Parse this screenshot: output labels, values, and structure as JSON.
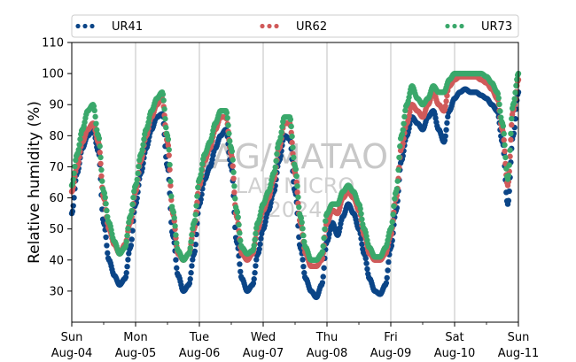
{
  "watermark": {
    "line1": "IAG/MATAO",
    "line2": "LAB MICRO",
    "line3": "2024"
  },
  "chart_data": {
    "type": "scatter",
    "title": "",
    "xlabel": "",
    "ylabel": "Relative humidity (%)",
    "xlim": [
      "2024-08-04T00:00",
      "2024-08-11T00:00"
    ],
    "ylim": [
      20,
      110
    ],
    "yticks": [
      30,
      40,
      50,
      60,
      70,
      80,
      90,
      100,
      110
    ],
    "xticks": [
      {
        "day": "Sun",
        "date": "Aug-04"
      },
      {
        "day": "Mon",
        "date": "Aug-05"
      },
      {
        "day": "Tue",
        "date": "Aug-06"
      },
      {
        "day": "Wed",
        "date": "Aug-07"
      },
      {
        "day": "Thu",
        "date": "Aug-08"
      },
      {
        "day": "Fri",
        "date": "Aug-09"
      },
      {
        "day": "Sat",
        "date": "Aug-10"
      },
      {
        "day": "Sun",
        "date": "Aug-11"
      }
    ],
    "grid": "vertical-major",
    "legend": "top",
    "series": [
      {
        "name": "UR41",
        "color": "#0b4587",
        "x": [
          "2024-08-04T00:00",
          "2024-08-04T02:00",
          "2024-08-04T04:00",
          "2024-08-04T06:00",
          "2024-08-04T08:00",
          "2024-08-04T10:00",
          "2024-08-04T12:00",
          "2024-08-04T14:00",
          "2024-08-04T16:00",
          "2024-08-04T18:00",
          "2024-08-04T20:00",
          "2024-08-04T22:00",
          "2024-08-05T00:00",
          "2024-08-05T02:00",
          "2024-08-05T04:00",
          "2024-08-05T06:00",
          "2024-08-05T08:00",
          "2024-08-05T10:00",
          "2024-08-05T12:00",
          "2024-08-05T14:00",
          "2024-08-05T16:00",
          "2024-08-05T18:00",
          "2024-08-05T20:00",
          "2024-08-05T22:00",
          "2024-08-06T00:00",
          "2024-08-06T02:00",
          "2024-08-06T04:00",
          "2024-08-06T06:00",
          "2024-08-06T08:00",
          "2024-08-06T10:00",
          "2024-08-06T12:00",
          "2024-08-06T14:00",
          "2024-08-06T16:00",
          "2024-08-06T18:00",
          "2024-08-06T20:00",
          "2024-08-06T22:00",
          "2024-08-07T00:00",
          "2024-08-07T02:00",
          "2024-08-07T04:00",
          "2024-08-07T06:00",
          "2024-08-07T08:00",
          "2024-08-07T10:00",
          "2024-08-07T12:00",
          "2024-08-07T14:00",
          "2024-08-07T16:00",
          "2024-08-07T18:00",
          "2024-08-07T20:00",
          "2024-08-07T22:00",
          "2024-08-08T00:00",
          "2024-08-08T02:00",
          "2024-08-08T04:00",
          "2024-08-08T06:00",
          "2024-08-08T08:00",
          "2024-08-08T10:00",
          "2024-08-08T12:00",
          "2024-08-08T14:00",
          "2024-08-08T16:00",
          "2024-08-08T18:00",
          "2024-08-08T20:00",
          "2024-08-08T22:00",
          "2024-08-09T00:00",
          "2024-08-09T02:00",
          "2024-08-09T04:00",
          "2024-08-09T06:00",
          "2024-08-09T08:00",
          "2024-08-09T10:00",
          "2024-08-09T12:00",
          "2024-08-09T14:00",
          "2024-08-09T16:00",
          "2024-08-09T18:00",
          "2024-08-09T20:00",
          "2024-08-09T22:00",
          "2024-08-10T00:00",
          "2024-08-10T02:00",
          "2024-08-10T04:00",
          "2024-08-10T06:00",
          "2024-08-10T08:00",
          "2024-08-10T10:00",
          "2024-08-10T12:00",
          "2024-08-10T14:00",
          "2024-08-10T16:00",
          "2024-08-10T18:00",
          "2024-08-10T20:00",
          "2024-08-10T22:00",
          "2024-08-11T00:00"
        ],
        "y": [
          55,
          68,
          76,
          80,
          82,
          75,
          52,
          40,
          35,
          32,
          34,
          44,
          58,
          68,
          76,
          82,
          86,
          87,
          70,
          48,
          35,
          30,
          32,
          42,
          58,
          66,
          70,
          76,
          80,
          82,
          70,
          46,
          34,
          30,
          32,
          42,
          50,
          56,
          62,
          72,
          80,
          79,
          62,
          44,
          34,
          30,
          28,
          32,
          46,
          52,
          48,
          54,
          58,
          55,
          50,
          42,
          34,
          30,
          29,
          32,
          44,
          56,
          72,
          80,
          86,
          84,
          82,
          86,
          88,
          82,
          78,
          88,
          92,
          94,
          95,
          94,
          94,
          93,
          92,
          90,
          88,
          78,
          58,
          80,
          94
        ],
        "size": 3.2
      },
      {
        "name": "UR62",
        "color": "#d05a5a",
        "x": [
          "2024-08-04T00:00",
          "2024-08-04T02:00",
          "2024-08-04T04:00",
          "2024-08-04T06:00",
          "2024-08-04T08:00",
          "2024-08-04T10:00",
          "2024-08-04T12:00",
          "2024-08-04T14:00",
          "2024-08-04T16:00",
          "2024-08-04T18:00",
          "2024-08-04T20:00",
          "2024-08-04T22:00",
          "2024-08-05T00:00",
          "2024-08-05T02:00",
          "2024-08-05T04:00",
          "2024-08-05T06:00",
          "2024-08-05T08:00",
          "2024-08-05T10:00",
          "2024-08-05T12:00",
          "2024-08-05T14:00",
          "2024-08-05T16:00",
          "2024-08-05T18:00",
          "2024-08-05T20:00",
          "2024-08-05T22:00",
          "2024-08-06T00:00",
          "2024-08-06T02:00",
          "2024-08-06T04:00",
          "2024-08-06T06:00",
          "2024-08-06T08:00",
          "2024-08-06T10:00",
          "2024-08-06T12:00",
          "2024-08-06T14:00",
          "2024-08-06T16:00",
          "2024-08-06T18:00",
          "2024-08-06T20:00",
          "2024-08-06T22:00",
          "2024-08-07T00:00",
          "2024-08-07T02:00",
          "2024-08-07T04:00",
          "2024-08-07T06:00",
          "2024-08-07T08:00",
          "2024-08-07T10:00",
          "2024-08-07T12:00",
          "2024-08-07T14:00",
          "2024-08-07T16:00",
          "2024-08-07T18:00",
          "2024-08-07T20:00",
          "2024-08-07T22:00",
          "2024-08-08T00:00",
          "2024-08-08T02:00",
          "2024-08-08T04:00",
          "2024-08-08T06:00",
          "2024-08-08T08:00",
          "2024-08-08T10:00",
          "2024-08-08T12:00",
          "2024-08-08T14:00",
          "2024-08-08T16:00",
          "2024-08-08T18:00",
          "2024-08-08T20:00",
          "2024-08-08T22:00",
          "2024-08-09T00:00",
          "2024-08-09T02:00",
          "2024-08-09T04:00",
          "2024-08-09T06:00",
          "2024-08-09T08:00",
          "2024-08-09T10:00",
          "2024-08-09T12:00",
          "2024-08-09T14:00",
          "2024-08-09T16:00",
          "2024-08-09T18:00",
          "2024-08-09T20:00",
          "2024-08-09T22:00",
          "2024-08-10T00:00",
          "2024-08-10T02:00",
          "2024-08-10T04:00",
          "2024-08-10T06:00",
          "2024-08-10T08:00",
          "2024-08-10T10:00",
          "2024-08-10T12:00",
          "2024-08-10T14:00",
          "2024-08-10T16:00",
          "2024-08-10T18:00",
          "2024-08-10T20:00",
          "2024-08-10T22:00",
          "2024-08-11T00:00"
        ],
        "y": [
          62,
          70,
          78,
          82,
          84,
          78,
          60,
          50,
          45,
          42,
          45,
          52,
          62,
          72,
          80,
          86,
          90,
          92,
          78,
          55,
          42,
          40,
          42,
          50,
          64,
          72,
          76,
          82,
          86,
          86,
          74,
          54,
          42,
          40,
          42,
          50,
          56,
          60,
          66,
          76,
          84,
          84,
          68,
          52,
          42,
          38,
          38,
          40,
          52,
          56,
          55,
          60,
          62,
          60,
          56,
          48,
          42,
          40,
          40,
          42,
          48,
          60,
          76,
          84,
          90,
          88,
          86,
          90,
          94,
          90,
          88,
          96,
          98,
          99,
          99,
          99,
          99,
          98,
          97,
          95,
          92,
          82,
          64,
          88,
          98
        ],
        "size": 3.2
      },
      {
        "name": "UR73",
        "color": "#3aa86b",
        "x": [
          "2024-08-04T00:00",
          "2024-08-04T02:00",
          "2024-08-04T04:00",
          "2024-08-04T06:00",
          "2024-08-04T08:00",
          "2024-08-04T10:00",
          "2024-08-04T12:00",
          "2024-08-04T14:00",
          "2024-08-04T16:00",
          "2024-08-04T18:00",
          "2024-08-04T20:00",
          "2024-08-04T22:00",
          "2024-08-05T00:00",
          "2024-08-05T02:00",
          "2024-08-05T04:00",
          "2024-08-05T06:00",
          "2024-08-05T08:00",
          "2024-08-05T10:00",
          "2024-08-05T12:00",
          "2024-08-05T14:00",
          "2024-08-05T16:00",
          "2024-08-05T18:00",
          "2024-08-05T20:00",
          "2024-08-05T22:00",
          "2024-08-06T00:00",
          "2024-08-06T02:00",
          "2024-08-06T04:00",
          "2024-08-06T06:00",
          "2024-08-06T08:00",
          "2024-08-06T10:00",
          "2024-08-06T12:00",
          "2024-08-06T14:00",
          "2024-08-06T16:00",
          "2024-08-06T18:00",
          "2024-08-06T20:00",
          "2024-08-06T22:00",
          "2024-08-07T00:00",
          "2024-08-07T02:00",
          "2024-08-07T04:00",
          "2024-08-07T06:00",
          "2024-08-07T08:00",
          "2024-08-07T10:00",
          "2024-08-07T12:00",
          "2024-08-07T14:00",
          "2024-08-07T16:00",
          "2024-08-07T18:00",
          "2024-08-07T20:00",
          "2024-08-07T22:00",
          "2024-08-08T00:00",
          "2024-08-08T02:00",
          "2024-08-08T04:00",
          "2024-08-08T06:00",
          "2024-08-08T08:00",
          "2024-08-08T10:00",
          "2024-08-08T12:00",
          "2024-08-08T14:00",
          "2024-08-08T16:00",
          "2024-08-08T18:00",
          "2024-08-08T20:00",
          "2024-08-08T22:00",
          "2024-08-09T00:00",
          "2024-08-09T02:00",
          "2024-08-09T04:00",
          "2024-08-09T06:00",
          "2024-08-09T08:00",
          "2024-08-09T10:00",
          "2024-08-09T12:00",
          "2024-08-09T14:00",
          "2024-08-09T16:00",
          "2024-08-09T18:00",
          "2024-08-09T20:00",
          "2024-08-09T22:00",
          "2024-08-10T00:00",
          "2024-08-10T02:00",
          "2024-08-10T04:00",
          "2024-08-10T06:00",
          "2024-08-10T08:00",
          "2024-08-10T10:00",
          "2024-08-10T12:00",
          "2024-08-10T14:00",
          "2024-08-10T16:00",
          "2024-08-10T18:00",
          "2024-08-10T20:00",
          "2024-08-10T22:00",
          "2024-08-11T00:00"
        ],
        "y": [
          64,
          74,
          82,
          88,
          90,
          80,
          62,
          52,
          46,
          42,
          44,
          54,
          64,
          74,
          82,
          88,
          92,
          94,
          80,
          56,
          43,
          40,
          42,
          52,
          66,
          74,
          78,
          84,
          88,
          88,
          76,
          56,
          44,
          42,
          43,
          52,
          58,
          62,
          68,
          78,
          86,
          86,
          70,
          54,
          44,
          40,
          40,
          42,
          55,
          58,
          58,
          62,
          64,
          62,
          58,
          50,
          44,
          41,
          41,
          44,
          50,
          62,
          80,
          90,
          96,
          92,
          90,
          92,
          96,
          94,
          94,
          98,
          100,
          100,
          100,
          100,
          100,
          100,
          99,
          97,
          94,
          84,
          66,
          90,
          100
        ],
        "size": 3.2
      }
    ]
  }
}
